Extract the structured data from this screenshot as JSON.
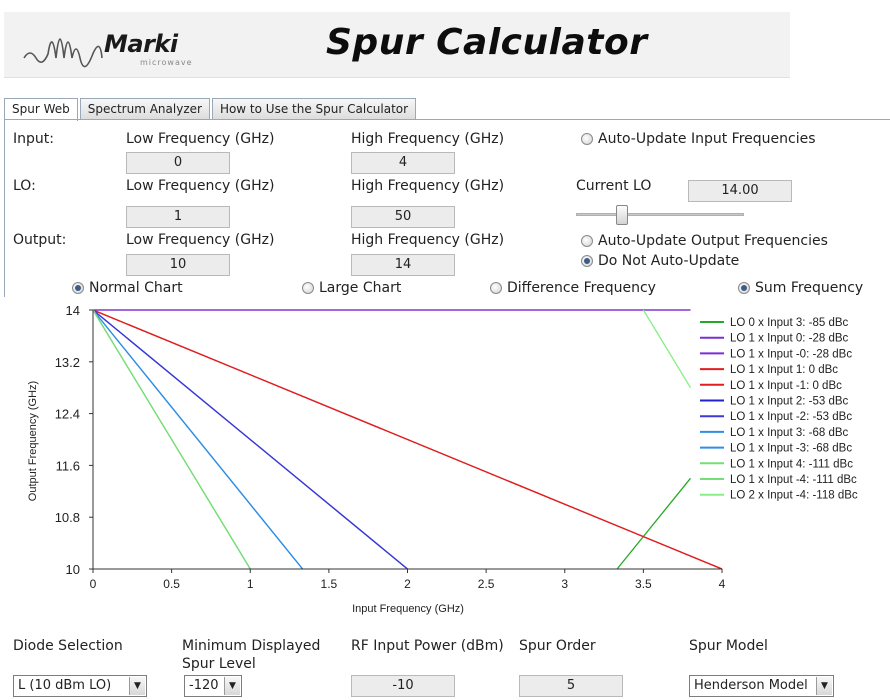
{
  "header": {
    "logo_text": "Marki",
    "logo_sub": "microwave",
    "title": "Spur Calculator"
  },
  "tabs": [
    {
      "label": "Spur Web",
      "active": true
    },
    {
      "label": "Spectrum Analyzer",
      "active": false
    },
    {
      "label": "How to Use the Spur Calculator",
      "active": false
    }
  ],
  "input": {
    "label": "Input:",
    "low_label": "Low Frequency (GHz)",
    "high_label": "High Frequency (GHz)",
    "low": "0",
    "high": "4"
  },
  "lo": {
    "label": "LO:",
    "low_label": "Low Frequency (GHz)",
    "high_label": "High Frequency (GHz)",
    "low": "1",
    "high": "50",
    "current_label": "Current LO",
    "current_value": "14.00"
  },
  "output": {
    "label": "Output:",
    "low_label": "Low Frequency (GHz)",
    "high_label": "High Frequency (GHz)",
    "low": "10",
    "high": "14"
  },
  "options": {
    "auto_update_input": "Auto-Update Input Frequencies",
    "auto_update_output": "Auto-Update Output Frequencies",
    "do_not_auto_update": "Do Not Auto-Update"
  },
  "chart_modes": {
    "normal": "Normal Chart",
    "large": "Large Chart",
    "difference": "Difference Frequency",
    "sum": "Sum Frequency"
  },
  "chart_data": {
    "type": "line",
    "xlabel": "Input Frequency (GHz)",
    "ylabel": "Output Frequency (GHz)",
    "xlim": [
      0,
      4
    ],
    "ylim": [
      10,
      14
    ],
    "xticks": [
      "0",
      "0.5",
      "1",
      "1.5",
      "2",
      "2.5",
      "3",
      "3.5",
      "4"
    ],
    "yticks": [
      "10",
      "10.8",
      "11.6",
      "12.4",
      "13.2",
      "14"
    ],
    "grid": false,
    "legend_position": "right",
    "series": [
      {
        "name": "LO 0 x Input 3: -85 dBc",
        "color": "#22aa22",
        "x": [
          3.333,
          3.8
        ],
        "y": [
          10,
          11.4
        ]
      },
      {
        "name": "LO 1 x Input 0: -28 dBc",
        "color": "#7b2fd1",
        "x": [
          0,
          3.8
        ],
        "y": [
          14,
          14
        ]
      },
      {
        "name": "LO 1 x Input -0: -28 dBc",
        "color": "#7b2fd1",
        "x": [
          0,
          3.8
        ],
        "y": [
          14,
          14
        ]
      },
      {
        "name": "LO 1 x Input 1: 0 dBc",
        "color": "#e02020",
        "x": [
          0,
          4
        ],
        "y": [
          14,
          10
        ]
      },
      {
        "name": "LO 1 x Input -1: 0 dBc",
        "color": "#e02020",
        "x": [
          0,
          4
        ],
        "y": [
          14,
          10
        ]
      },
      {
        "name": "LO 1 x Input 2: -53 dBc",
        "color": "#2222cc",
        "x": [
          0,
          2
        ],
        "y": [
          14,
          10
        ]
      },
      {
        "name": "LO 1 x Input -2: -53 dBc",
        "color": "#3a3ad8",
        "x": [
          0,
          2
        ],
        "y": [
          14,
          10
        ]
      },
      {
        "name": "LO 1 x Input 3: -68 dBc",
        "color": "#2e8ee6",
        "x": [
          0,
          1.333
        ],
        "y": [
          14,
          10
        ]
      },
      {
        "name": "LO 1 x Input -3: -68 dBc",
        "color": "#2e8ee6",
        "x": [
          0,
          1.333
        ],
        "y": [
          14,
          10
        ]
      },
      {
        "name": "LO 1 x Input 4: -111 dBc",
        "color": "#77dd77",
        "x": [
          0,
          1
        ],
        "y": [
          14,
          10
        ]
      },
      {
        "name": "LO 1 x Input -4: -111 dBc",
        "color": "#77dd77",
        "x": [
          0,
          1
        ],
        "y": [
          14,
          10
        ]
      },
      {
        "name": "LO 2 x Input -4: -118 dBc",
        "color": "#88ee88",
        "x": [
          3.5,
          3.8
        ],
        "y": [
          14,
          12.8
        ]
      }
    ]
  },
  "bottom": {
    "diode_label": "Diode Selection",
    "diode_value": "L (10 dBm LO)",
    "min_spur_label_1": "Minimum Displayed",
    "min_spur_label_2": "Spur Level",
    "min_spur_value": "-120",
    "rf_power_label": "RF Input Power (dBm)",
    "rf_power_value": "-10",
    "spur_order_label": "Spur Order",
    "spur_order_value": "5",
    "spur_model_label": "Spur Model",
    "spur_model_value": "Henderson Model"
  }
}
